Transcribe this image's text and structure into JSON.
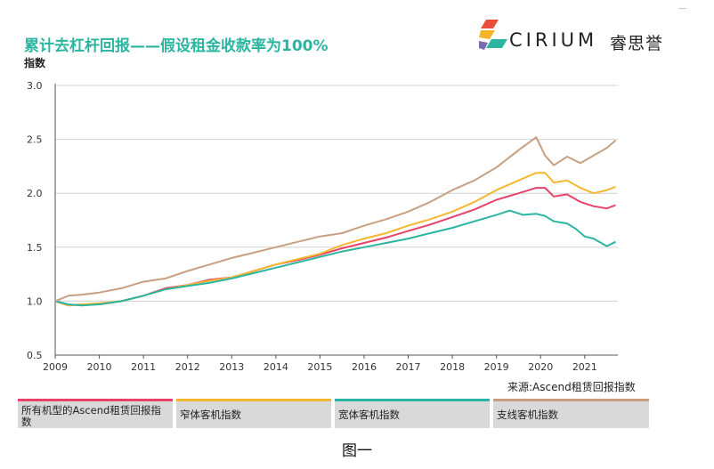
{
  "title": "累计去杠杆回报——假设租金收款率为100%",
  "logo": {
    "wordmark": "CIRIUM",
    "chinese": "睿思誉",
    "colors": [
      "#e94e3c",
      "#f6b428",
      "#2bb5a0",
      "#7a6bb0"
    ]
  },
  "source": "来源:Ascend租赁回报指数",
  "caption": "图一",
  "legend": [
    {
      "label": "所有机型的Ascend租赁回报指数",
      "color": "#e8426a"
    },
    {
      "label": "窄体客机指数",
      "color": "#f5b731"
    },
    {
      "label": "宽体客机指数",
      "color": "#2bb5a0"
    },
    {
      "label": "支线客机指数",
      "color": "#c6a080"
    }
  ],
  "chart_data": {
    "type": "line",
    "ylabel": "指数",
    "xlabel": "",
    "ylim": [
      0.5,
      3.0
    ],
    "xlim": [
      2009,
      2021.75
    ],
    "yticks": [
      "0.5",
      "1.0",
      "1.5",
      "2.0",
      "2.5",
      "3.0"
    ],
    "xticks": [
      "2009",
      "2010",
      "2011",
      "2012",
      "2013",
      "2014",
      "2015",
      "2016",
      "2017",
      "2018",
      "2019",
      "2020",
      "2021"
    ],
    "grid": "horizontal",
    "series": [
      {
        "name": "所有机型的Ascend租赁回报指数",
        "color": "#e8426a",
        "x": [
          2009.0,
          2009.3,
          2009.6,
          2010.0,
          2010.5,
          2011.0,
          2011.5,
          2012.0,
          2012.5,
          2013.0,
          2013.5,
          2014.0,
          2014.5,
          2015.0,
          2015.5,
          2016.0,
          2016.5,
          2017.0,
          2017.5,
          2018.0,
          2018.5,
          2019.0,
          2019.5,
          2019.9,
          2020.1,
          2020.3,
          2020.6,
          2020.9,
          2021.2,
          2021.5,
          2021.7
        ],
        "y": [
          1.0,
          0.96,
          0.97,
          0.97,
          1.0,
          1.05,
          1.12,
          1.15,
          1.2,
          1.22,
          1.28,
          1.34,
          1.38,
          1.43,
          1.49,
          1.54,
          1.59,
          1.65,
          1.71,
          1.78,
          1.85,
          1.94,
          2.0,
          2.05,
          2.05,
          1.97,
          1.99,
          1.92,
          1.88,
          1.86,
          1.89
        ]
      },
      {
        "name": "窄体客机指数",
        "color": "#f5b731",
        "x": [
          2009.0,
          2009.3,
          2009.6,
          2010.0,
          2010.5,
          2011.0,
          2011.5,
          2012.0,
          2012.5,
          2013.0,
          2013.5,
          2014.0,
          2014.5,
          2015.0,
          2015.5,
          2016.0,
          2016.5,
          2017.0,
          2017.5,
          2018.0,
          2018.5,
          2019.0,
          2019.5,
          2019.9,
          2020.1,
          2020.3,
          2020.6,
          2020.9,
          2021.2,
          2021.5,
          2021.7
        ],
        "y": [
          1.0,
          0.96,
          0.97,
          0.98,
          1.0,
          1.05,
          1.11,
          1.15,
          1.19,
          1.22,
          1.28,
          1.34,
          1.39,
          1.44,
          1.52,
          1.58,
          1.63,
          1.7,
          1.76,
          1.83,
          1.92,
          2.03,
          2.12,
          2.19,
          2.19,
          2.1,
          2.12,
          2.05,
          2.0,
          2.03,
          2.06
        ]
      },
      {
        "name": "宽体客机指数",
        "color": "#2bb5a0",
        "x": [
          2009.0,
          2009.3,
          2009.6,
          2010.0,
          2010.5,
          2011.0,
          2011.5,
          2012.0,
          2012.5,
          2013.0,
          2013.5,
          2014.0,
          2014.5,
          2015.0,
          2015.5,
          2016.0,
          2016.5,
          2017.0,
          2017.5,
          2018.0,
          2018.5,
          2019.0,
          2019.3,
          2019.6,
          2019.9,
          2020.1,
          2020.3,
          2020.6,
          2020.8,
          2021.0,
          2021.2,
          2021.5,
          2021.7
        ],
        "y": [
          1.0,
          0.97,
          0.96,
          0.97,
          1.0,
          1.05,
          1.11,
          1.14,
          1.17,
          1.21,
          1.26,
          1.31,
          1.36,
          1.41,
          1.46,
          1.5,
          1.54,
          1.58,
          1.63,
          1.68,
          1.74,
          1.8,
          1.84,
          1.8,
          1.81,
          1.79,
          1.74,
          1.72,
          1.67,
          1.6,
          1.58,
          1.51,
          1.55
        ]
      },
      {
        "name": "支线客机指数",
        "color": "#c6a080",
        "x": [
          2009.0,
          2009.3,
          2009.6,
          2010.0,
          2010.5,
          2011.0,
          2011.5,
          2012.0,
          2012.5,
          2013.0,
          2013.5,
          2014.0,
          2014.5,
          2015.0,
          2015.5,
          2016.0,
          2016.5,
          2017.0,
          2017.5,
          2018.0,
          2018.5,
          2019.0,
          2019.5,
          2019.9,
          2020.1,
          2020.3,
          2020.6,
          2020.9,
          2021.2,
          2021.5,
          2021.7
        ],
        "y": [
          1.0,
          1.05,
          1.06,
          1.08,
          1.12,
          1.18,
          1.21,
          1.28,
          1.34,
          1.4,
          1.45,
          1.5,
          1.55,
          1.6,
          1.63,
          1.7,
          1.76,
          1.83,
          1.92,
          2.03,
          2.12,
          2.24,
          2.4,
          2.52,
          2.35,
          2.26,
          2.34,
          2.28,
          2.35,
          2.42,
          2.49
        ]
      }
    ]
  }
}
